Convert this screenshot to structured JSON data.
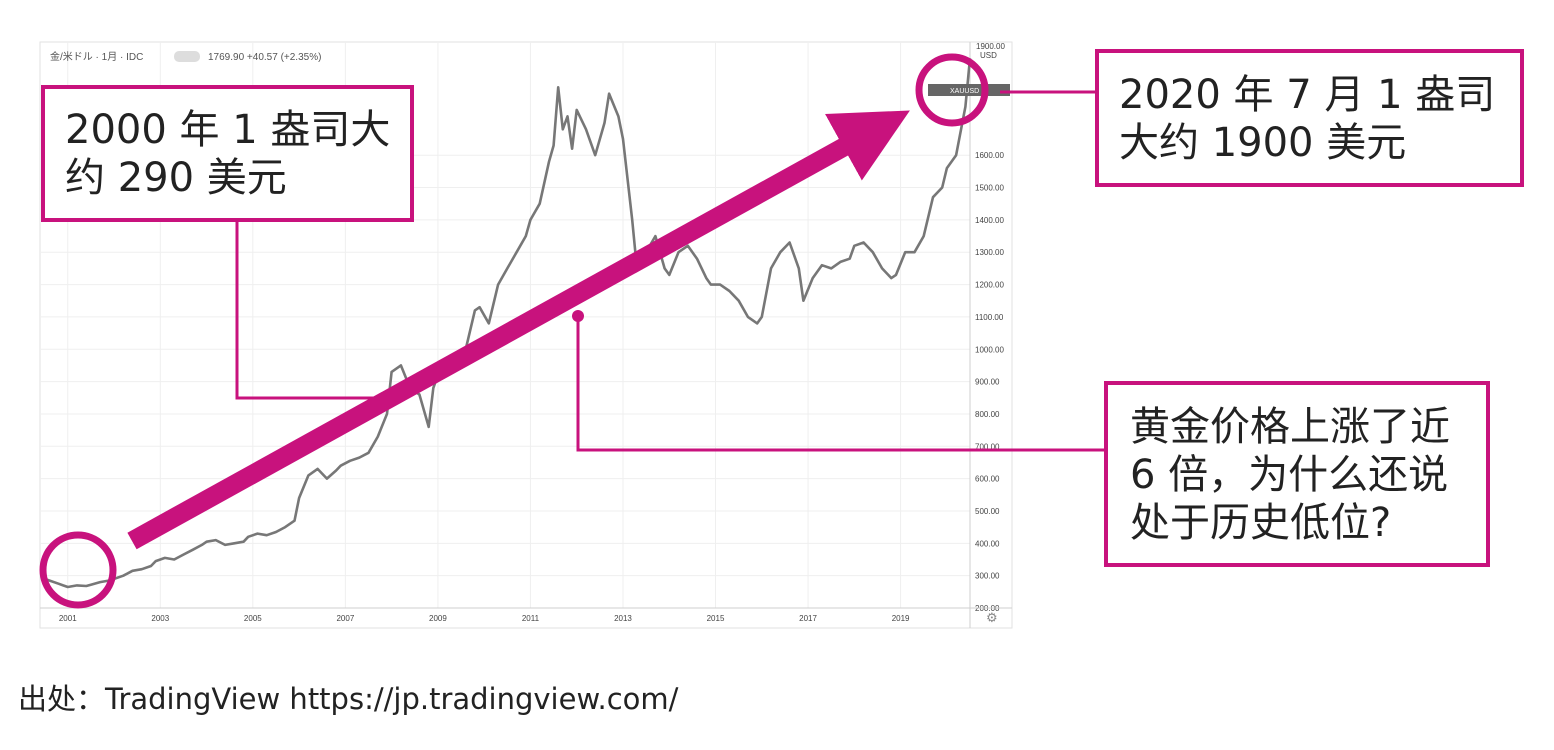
{
  "chart_header": {
    "title": "金/米ドル · 1月 · IDC",
    "price_info": "1769.90 +40.57 (+2.35%)"
  },
  "chart_data": {
    "type": "line",
    "series": [
      {
        "x": [
          2000.5,
          2000.6,
          2000.8,
          2000.9,
          2001.0,
          2001.2,
          2001.4,
          2001.5,
          2001.7,
          2001.9,
          2002.0,
          2002.2,
          2002.4,
          2002.6,
          2002.8,
          2002.9,
          2003.1,
          2003.3,
          2003.5,
          2003.7,
          2003.9,
          2004.0,
          2004.2,
          2004.4,
          2004.6,
          2004.8,
          2004.9,
          2005.1,
          2005.3,
          2005.5,
          2005.7,
          2005.9,
          2006.0,
          2006.2,
          2006.4,
          2006.6,
          2006.8,
          2006.9,
          2007.1,
          2007.3,
          2007.5,
          2007.7,
          2007.9,
          2008.0,
          2008.2,
          2008.4,
          2008.6,
          2008.8,
          2008.9,
          2009.0,
          2009.2,
          2009.4,
          2009.6,
          2009.8,
          2009.9,
          2010.1,
          2010.3,
          2010.5,
          2010.7,
          2010.9,
          2011.0,
          2011.2,
          2011.4,
          2011.5,
          2011.6,
          2011.7,
          2011.8,
          2011.9,
          2012.0,
          2012.2,
          2012.4,
          2012.6,
          2012.7,
          2012.9,
          2013.0,
          2013.2,
          2013.3,
          2013.5,
          2013.7,
          2013.9,
          2014.0,
          2014.2,
          2014.4,
          2014.6,
          2014.8,
          2014.9,
          2015.1,
          2015.3,
          2015.5,
          2015.7,
          2015.9,
          2016.0,
          2016.2,
          2016.4,
          2016.6,
          2016.8,
          2016.9,
          2017.1,
          2017.3,
          2017.5,
          2017.7,
          2017.9,
          2018.0,
          2018.2,
          2018.4,
          2018.6,
          2018.8,
          2018.9,
          2019.1,
          2019.3,
          2019.5,
          2019.7,
          2019.9,
          2020.0,
          2020.2,
          2020.4,
          2020.5
        ],
        "values": [
          290,
          285,
          275,
          270,
          265,
          270,
          268,
          272,
          280,
          285,
          290,
          300,
          315,
          320,
          330,
          345,
          355,
          350,
          365,
          380,
          395,
          405,
          410,
          395,
          400,
          405,
          420,
          430,
          425,
          435,
          450,
          470,
          540,
          610,
          630,
          600,
          625,
          640,
          655,
          665,
          680,
          730,
          800,
          930,
          950,
          880,
          860,
          760,
          880,
          920,
          930,
          960,
          1000,
          1120,
          1130,
          1080,
          1200,
          1250,
          1300,
          1350,
          1400,
          1450,
          1580,
          1630,
          1810,
          1680,
          1720,
          1620,
          1740,
          1680,
          1600,
          1700,
          1790,
          1720,
          1650,
          1400,
          1250,
          1300,
          1350,
          1250,
          1230,
          1300,
          1320,
          1280,
          1220,
          1200,
          1200,
          1180,
          1150,
          1100,
          1080,
          1100,
          1250,
          1300,
          1330,
          1250,
          1150,
          1220,
          1260,
          1250,
          1270,
          1280,
          1320,
          1330,
          1300,
          1250,
          1220,
          1230,
          1300,
          1300,
          1350,
          1470,
          1500,
          1560,
          1600,
          1750,
          1900
        ]
      }
    ],
    "xlim": [
      2000.4,
      2020.5
    ],
    "ylim": [
      200,
      1950
    ],
    "x_ticks": [
      {
        "value": 2001,
        "label": "2001"
      },
      {
        "value": 2003,
        "label": "2003"
      },
      {
        "value": 2005,
        "label": "2005"
      },
      {
        "value": 2007,
        "label": "2007"
      },
      {
        "value": 2009,
        "label": "2009"
      },
      {
        "value": 2011,
        "label": "2011"
      },
      {
        "value": 2013,
        "label": "2013"
      },
      {
        "value": 2015,
        "label": "2015"
      },
      {
        "value": 2017,
        "label": "2017"
      },
      {
        "value": 2019,
        "label": "2019"
      }
    ],
    "y_ticks": [
      {
        "value": 200,
        "label": "200.00"
      },
      {
        "value": 300,
        "label": "300.00"
      },
      {
        "value": 400,
        "label": "400.00"
      },
      {
        "value": 500,
        "label": "500.00"
      },
      {
        "value": 600,
        "label": "600.00"
      },
      {
        "value": 700,
        "label": "700.00"
      },
      {
        "value": 800,
        "label": "800.00"
      },
      {
        "value": 900,
        "label": "900.00"
      },
      {
        "value": 1000,
        "label": "1000.00"
      },
      {
        "value": 1100,
        "label": "1100.00"
      },
      {
        "value": 1200,
        "label": "1200.00"
      },
      {
        "value": 1300,
        "label": "1300.00"
      },
      {
        "value": 1400,
        "label": "1400.00"
      },
      {
        "value": 1500,
        "label": "1500.00"
      },
      {
        "value": 1600,
        "label": "1600.00"
      }
    ],
    "axis_top_label": "1900.00",
    "currency_label": "USD",
    "price_tag": "XAUUSD",
    "grid": true,
    "line_color": "#777777"
  },
  "annotations": {
    "accent_color": "#c8127d",
    "start_text": "2000 年 1 盎司大\n约 290 美元",
    "end_text": "2020 年 7 月 1 盎司\n大约 1900 美元",
    "growth_text": "黄金价格上涨了近\n6 倍，为什么还说\n处于历史低位?"
  },
  "source": "出处：TradingView https://jp.tradingview.com/"
}
